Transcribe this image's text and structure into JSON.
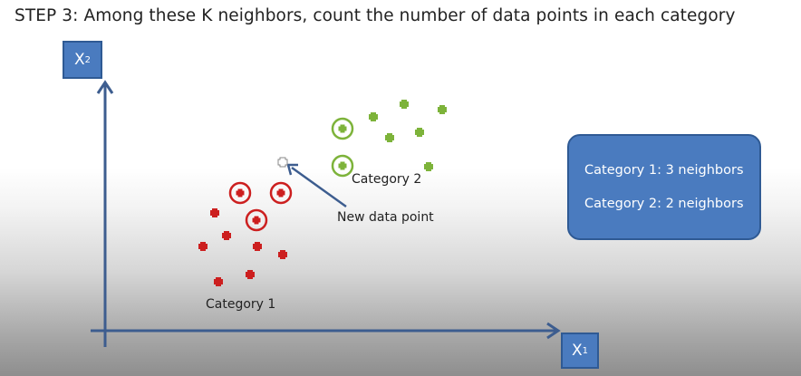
{
  "title": {
    "step": "STEP 3:",
    "text": "Among these K neighbors, count the number of data points in each category"
  },
  "axes": {
    "y_label": "X",
    "y_sub": "2",
    "x_label": "X",
    "x_sub": "1"
  },
  "info_box": {
    "line1": "Category 1: 3 neighbors",
    "line2": "Category 2: 2 neighbors"
  },
  "labels": {
    "category1": "Category 1",
    "category2": "Category 2",
    "new_point": "New data point"
  },
  "colors": {
    "axis": "#3d5d8f",
    "category1": "#cc1f1f",
    "category2": "#7db33a",
    "new_point": "#8a8a8a",
    "box": "#4a7bbf"
  },
  "points": {
    "category1": [
      {
        "neighbor": true
      },
      {
        "neighbor": true
      },
      {
        "neighbor": true
      },
      {
        "neighbor": false
      },
      {
        "neighbor": false
      },
      {
        "neighbor": false
      },
      {
        "neighbor": false
      },
      {
        "neighbor": false
      },
      {
        "neighbor": false
      },
      {
        "neighbor": false
      }
    ],
    "category2": [
      {
        "neighbor": true
      },
      {
        "neighbor": true
      },
      {
        "neighbor": false
      },
      {
        "neighbor": false
      },
      {
        "neighbor": false
      },
      {
        "neighbor": false
      },
      {
        "neighbor": false
      },
      {
        "neighbor": false
      }
    ]
  }
}
